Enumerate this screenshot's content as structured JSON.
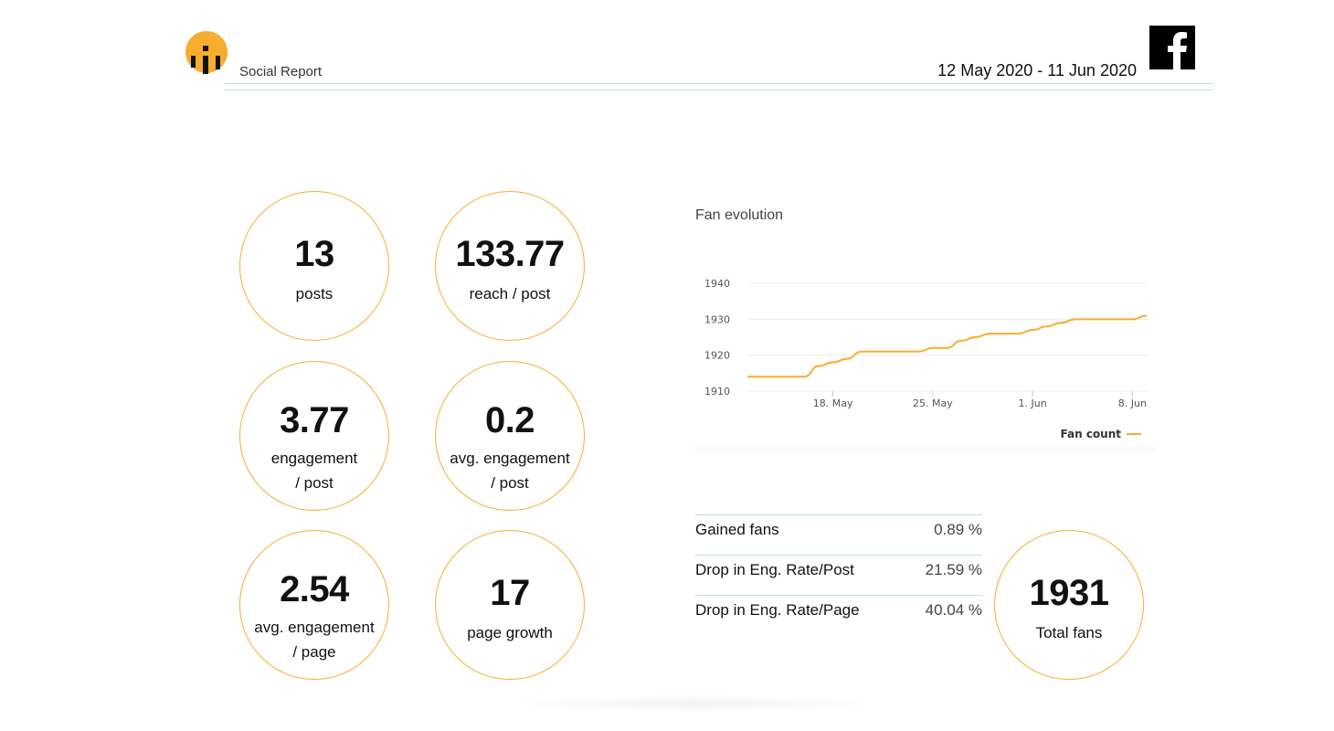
{
  "header": {
    "title": "Social Report",
    "date_range": "12 May 2020 - 11 Jun 2020",
    "brand_icon": "facebook-icon",
    "logo_icon": "company-logo-icon"
  },
  "stats": [
    {
      "value": "13",
      "label": "posts"
    },
    {
      "value": "133.77",
      "label": "reach / post"
    },
    {
      "value": "3.77",
      "label_line1": "engagement",
      "label_line2": "/ post"
    },
    {
      "value": "0.2",
      "label_line1": "avg. engagement",
      "label_line2": "/ post"
    },
    {
      "value": "2.54",
      "label_line1": "avg. engagement",
      "label_line2": "/ page"
    },
    {
      "value": "17",
      "label": "page growth"
    }
  ],
  "metrics": [
    {
      "label": "Gained fans",
      "value": "0.89 %"
    },
    {
      "label": "Drop in Eng. Rate/Post",
      "value": "21.59 %"
    },
    {
      "label": "Drop in Eng. Rate/Page",
      "value": "40.04 %"
    }
  ],
  "total_fans": {
    "value": "1931",
    "label": "Total fans"
  },
  "colors": {
    "accent": "#f8ad2f",
    "rule": "#bfe0d6"
  },
  "chart_title": "Fan evolution",
  "chart_data": {
    "type": "line",
    "title": "Fan evolution",
    "x_start": "2020-05-12",
    "x_end": "2020-06-09",
    "x_tick_labels": [
      "18. May",
      "25. May",
      "1. Jun",
      "8. Jun"
    ],
    "x_tick_dates": [
      "2020-05-18",
      "2020-05-25",
      "2020-06-01",
      "2020-06-08"
    ],
    "y_ticks": [
      1910,
      1920,
      1930,
      1940
    ],
    "ylim": [
      1910,
      1940
    ],
    "grid": true,
    "legend": "bottom-right",
    "series": [
      {
        "name": "Fan count",
        "color": "#f8ad2f",
        "x": [
          "2020-05-12",
          "2020-05-13",
          "2020-05-14",
          "2020-05-15",
          "2020-05-16",
          "2020-05-17",
          "2020-05-18",
          "2020-05-19",
          "2020-05-20",
          "2020-05-21",
          "2020-05-22",
          "2020-05-23",
          "2020-05-24",
          "2020-05-25",
          "2020-05-26",
          "2020-05-27",
          "2020-05-28",
          "2020-05-29",
          "2020-05-30",
          "2020-05-31",
          "2020-06-01",
          "2020-06-02",
          "2020-06-03",
          "2020-06-04",
          "2020-06-05",
          "2020-06-06",
          "2020-06-07",
          "2020-06-08",
          "2020-06-09"
        ],
        "values": [
          1914,
          1914,
          1914,
          1914,
          1914,
          1917,
          1918,
          1919,
          1921,
          1921,
          1921,
          1921,
          1921,
          1922,
          1922,
          1924,
          1925,
          1926,
          1926,
          1926,
          1927,
          1928,
          1929,
          1930,
          1930,
          1930,
          1930,
          1930,
          1931
        ]
      }
    ]
  }
}
